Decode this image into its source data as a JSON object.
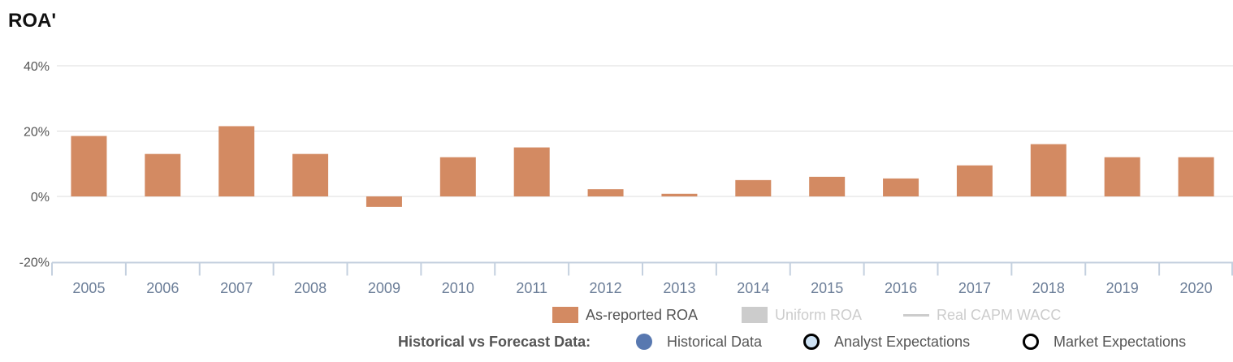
{
  "chart_data": {
    "type": "bar",
    "title": "ROA'",
    "categories": [
      "2005",
      "2006",
      "2007",
      "2008",
      "2009",
      "2010",
      "2011",
      "2012",
      "2013",
      "2014",
      "2015",
      "2016",
      "2017",
      "2018",
      "2019",
      "2020"
    ],
    "series": [
      {
        "name": "As-reported ROA",
        "values": [
          18.5,
          13.0,
          21.5,
          13.0,
          -3.2,
          12.0,
          15.0,
          2.2,
          0.8,
          5.0,
          6.0,
          5.5,
          9.5,
          16.0,
          12.0,
          12.0
        ]
      }
    ],
    "yticks": [
      40,
      20,
      0,
      -20
    ],
    "ytick_labels": [
      "40%",
      "20%",
      "0%",
      "-20%"
    ],
    "ylim": [
      -20,
      40
    ],
    "grid": true,
    "colors": {
      "bar": "#d38a62",
      "grid": "#dddddd",
      "axis": "#c4d0df",
      "tick_text": "#6d7f99",
      "ytick_text": "#555555"
    }
  },
  "legend": {
    "items": [
      {
        "label": "As-reported ROA",
        "color": "#d38a62",
        "active": true
      },
      {
        "label": "Uniform ROA",
        "color": "#cccccc",
        "active": false
      },
      {
        "label": "Real CAPM WACC",
        "color": "#cccccc",
        "active": false
      }
    ]
  },
  "status": {
    "label": "Historical vs Forecast Data:",
    "historical": "Historical Data",
    "analyst": "Analyst Expectations",
    "market": "Market Expectations",
    "historical_color": "#5878b0"
  }
}
